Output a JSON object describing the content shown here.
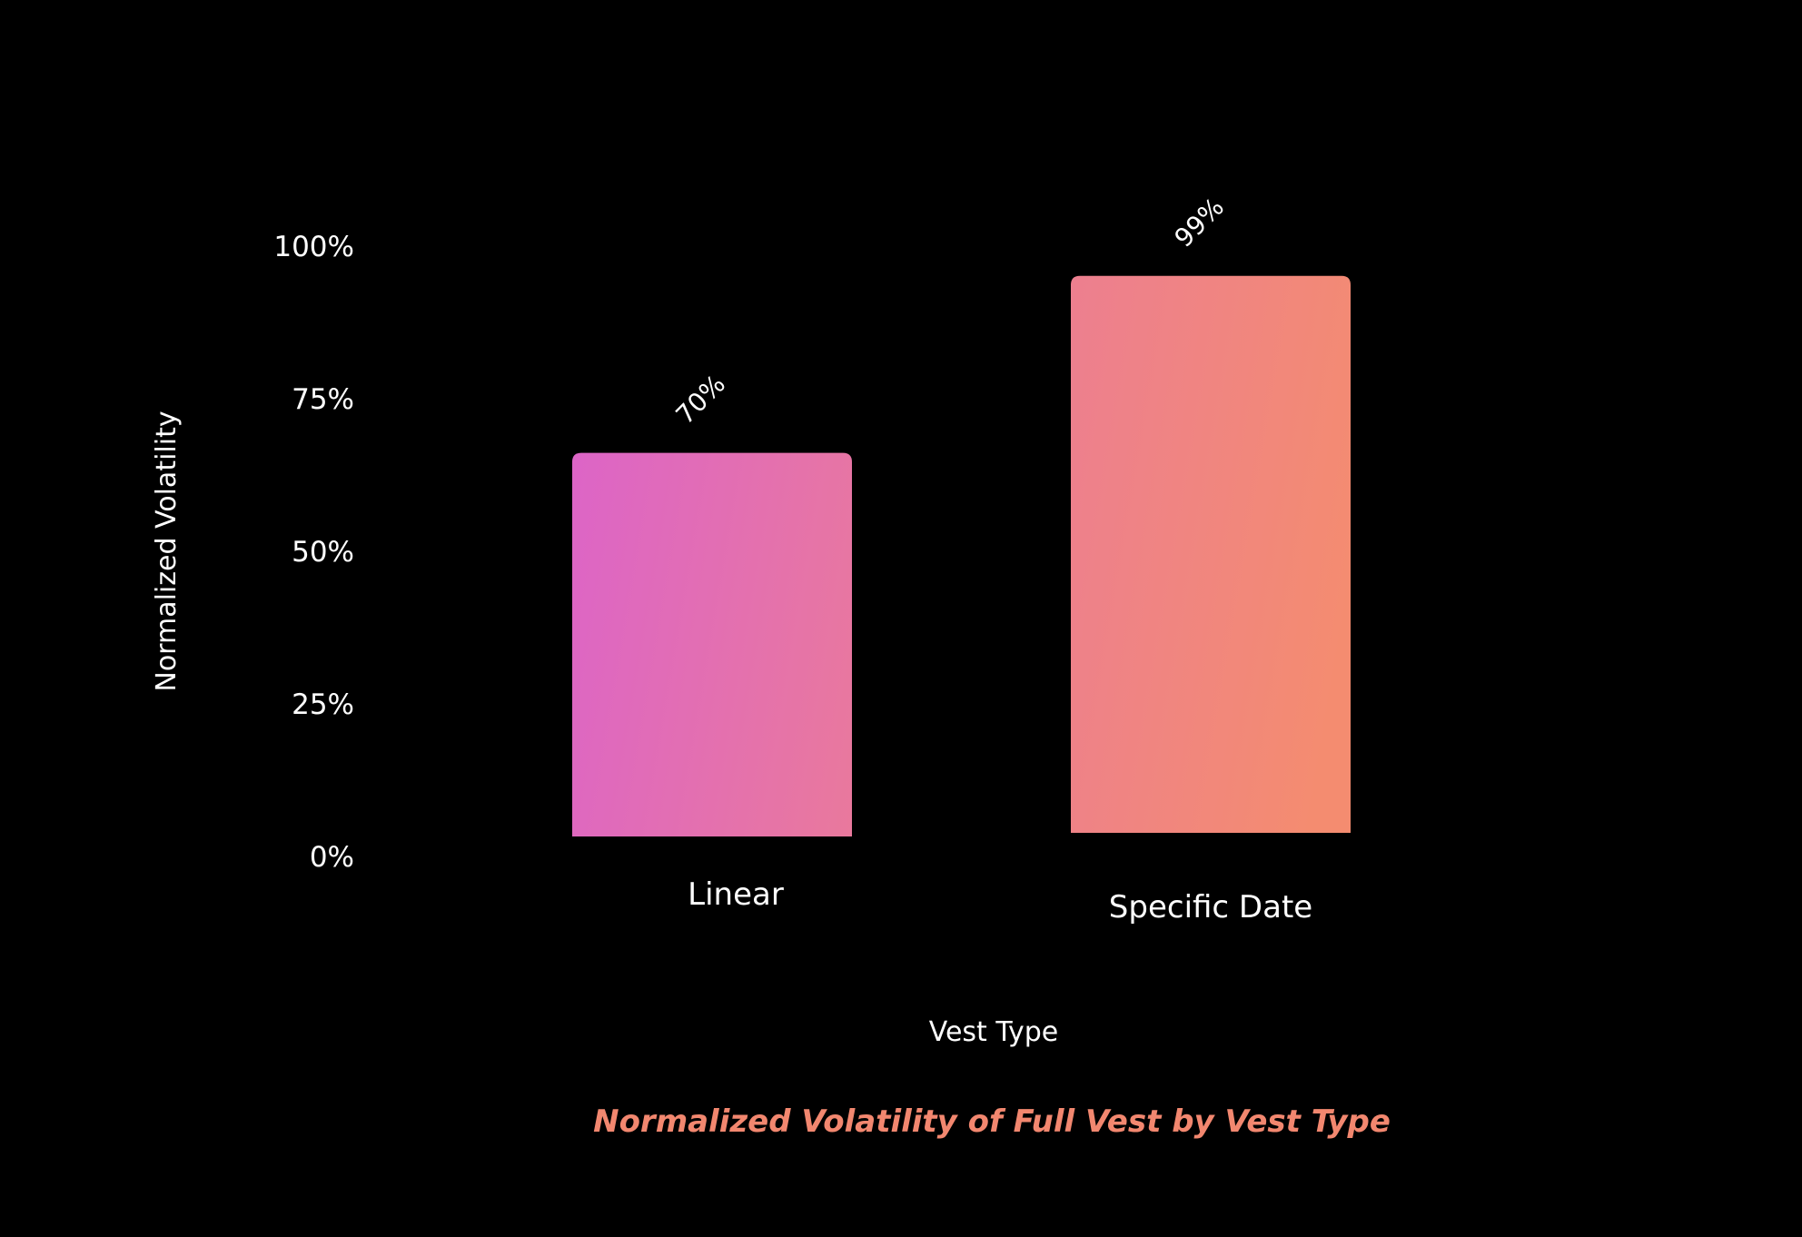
{
  "colors": {
    "background": "#000000",
    "text": "#ffffff",
    "title": "#f2876f",
    "bar_gradient_start": "#dc64c8",
    "bar_gradient_mid": "#eb7c96",
    "bar_gradient_end": "#f48c70"
  },
  "chart_data": {
    "type": "bar",
    "title": "Normalized Volatility  of Full Vest by Vest Type",
    "xlabel": "Vest Type",
    "ylabel": "Normalized Volatility",
    "categories": [
      "Linear",
      "Specific Date"
    ],
    "values": [
      70,
      99
    ],
    "value_labels": [
      "70%",
      "99%"
    ],
    "value_unit": "%",
    "ylim": [
      0,
      100
    ],
    "yticks": [
      0,
      25,
      50,
      75,
      100
    ],
    "ytick_labels": [
      "0%",
      "25%",
      "50%",
      "75%",
      "100%"
    ],
    "grid": false,
    "legend": "none"
  }
}
